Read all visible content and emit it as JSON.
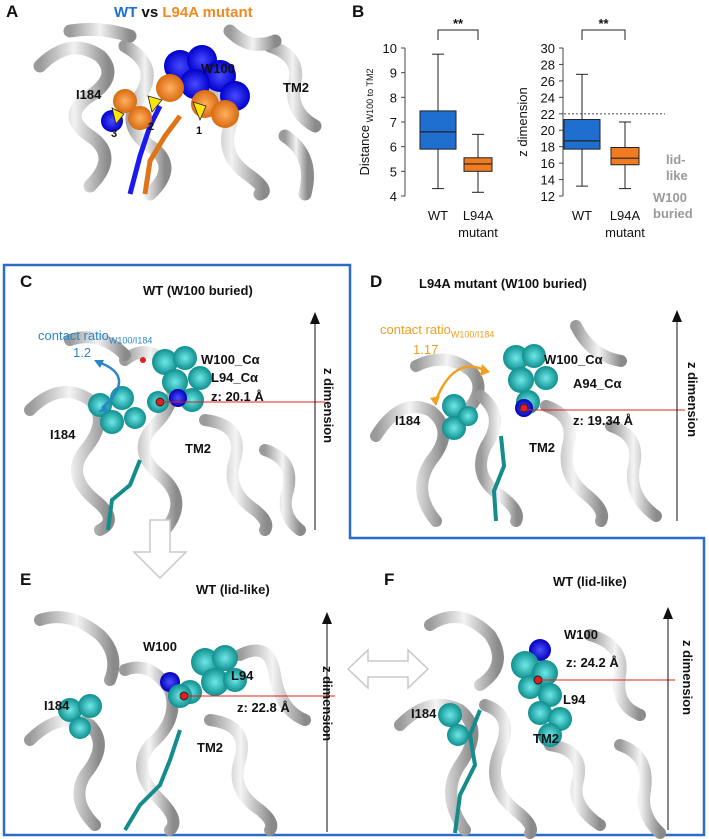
{
  "panels": {
    "A": {
      "letter": "A",
      "title_wt": "WT",
      "title_vs": "vs",
      "title_mut": "L94A mutant",
      "labels": {
        "w100": "W100",
        "tm2": "TM2",
        "i184": "I184",
        "n1": "1",
        "n2": "2",
        "n3": "3"
      },
      "colors": {
        "wt": "#1f6fd1",
        "mut": "#f08a24",
        "wt_atoms": "#1a1aff",
        "arrow": "#ffe600"
      }
    },
    "B": {
      "letter": "B",
      "lid_like": "lid-\nlike",
      "lid_line1": "lid-",
      "lid_line2": "like",
      "buried_line1": "W100",
      "buried_line2": "buried"
    },
    "C": {
      "letter": "C",
      "title": "WT (W100 buried)",
      "contact_ratio_label": "contact ratio",
      "contact_sub": "W100/I184",
      "contact_value": "1.2",
      "labels": {
        "w100": "W100_Cα",
        "l94": "L94_Cα",
        "z": "z: 20.1 Å",
        "i184": "I184",
        "tm2": "TM2",
        "zdim": "z dimension"
      }
    },
    "D": {
      "letter": "D",
      "title": "L94A mutant (W100 buried)",
      "contact_ratio_label": "contact ratio",
      "contact_sub": "W100/I184",
      "contact_value": "1.17",
      "labels": {
        "w100": "W100_Cα",
        "a94": "A94_Cα",
        "z": "z: 19.34 Å",
        "i184": "I184",
        "tm2": "TM2",
        "zdim": "z dimension"
      }
    },
    "E": {
      "letter": "E",
      "title": "WT (lid-like)",
      "labels": {
        "w100": "W100",
        "l94": "L94",
        "z": "z: 22.8 Å",
        "i184": "I184",
        "tm2": "TM2",
        "zdim": "z dimension"
      }
    },
    "F": {
      "letter": "F",
      "title": "WT (lid-like)",
      "labels": {
        "w100": "W100",
        "z": "z: 24.2 Å",
        "l94": "L94",
        "i184": "I184",
        "tm2": "TM2",
        "zdim": "z dimension"
      }
    }
  },
  "chart_data": [
    {
      "type": "box",
      "ylabel": "Distance",
      "ylabel_sub": "W100 to TM2",
      "ylim": [
        4,
        10
      ],
      "yticks": [
        4,
        5,
        6,
        7,
        8,
        9,
        10
      ],
      "significance": "**",
      "categories": [
        "WT",
        "L94A\nmutant"
      ],
      "category_lines": [
        [
          "WT"
        ],
        [
          "L94A",
          "mutant"
        ]
      ],
      "series": [
        {
          "category": "WT",
          "color": "#1f6fd1",
          "min": 4.3,
          "q1": 5.9,
          "median": 6.6,
          "q3": 7.45,
          "max": 9.75
        },
        {
          "category": "L94A mutant",
          "color": "#f07b20",
          "min": 4.15,
          "q1": 5.0,
          "median": 5.3,
          "q3": 5.55,
          "max": 6.5
        }
      ]
    },
    {
      "type": "box",
      "ylabel": "z dimension",
      "ylim": [
        12,
        30
      ],
      "yticks": [
        12,
        14,
        16,
        18,
        20,
        22,
        24,
        26,
        28,
        30
      ],
      "significance": "**",
      "reference_line": 22,
      "categories": [
        "WT",
        "L94A\nmutant"
      ],
      "category_lines": [
        [
          "WT"
        ],
        [
          "L94A",
          "mutant"
        ]
      ],
      "series": [
        {
          "category": "WT",
          "color": "#1f6fd1",
          "min": 13.2,
          "q1": 17.7,
          "median": 18.7,
          "q3": 21.3,
          "max": 26.8
        },
        {
          "category": "L94A mutant",
          "color": "#f07b20",
          "min": 12.9,
          "q1": 15.8,
          "median": 16.6,
          "q3": 17.9,
          "max": 21.0
        }
      ]
    }
  ]
}
